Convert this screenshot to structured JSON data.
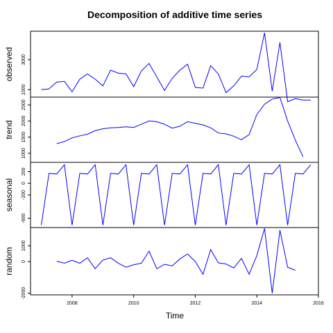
{
  "chart_data": {
    "type": "line",
    "title": "Decomposition of additive time series",
    "xlabel": "Time",
    "xlim": [
      2006.65,
      2016.0
    ],
    "x_ticks": [
      2008,
      2010,
      2012,
      2014,
      2016
    ],
    "x_tick_labels": [
      "2008",
      "2010",
      "2012",
      "2014",
      "2016"
    ],
    "x": [
      2007.0,
      2007.25,
      2007.5,
      2007.75,
      2008.0,
      2008.25,
      2008.5,
      2008.75,
      2009.0,
      2009.25,
      2009.5,
      2009.75,
      2010.0,
      2010.25,
      2010.5,
      2010.75,
      2011.0,
      2011.25,
      2011.5,
      2011.75,
      2012.0,
      2012.25,
      2012.5,
      2012.75,
      2013.0,
      2013.25,
      2013.5,
      2013.75,
      2014.0,
      2014.25,
      2014.5,
      2014.75,
      2015.0,
      2015.25,
      2015.5,
      2015.75
    ],
    "series": [
      {
        "name": "observed",
        "ylim": [
          500,
          4900
        ],
        "y_ticks": [
          1000,
          3000
        ],
        "y_tick_labels": [
          "1000",
          "3000"
        ],
        "values": [
          1000,
          1050,
          1500,
          1550,
          850,
          1700,
          2050,
          1700,
          1250,
          2300,
          2100,
          2050,
          1200,
          2250,
          2750,
          1850,
          950,
          1750,
          2300,
          2700,
          1150,
          1100,
          2600,
          2050,
          800,
          1250,
          1900,
          1850,
          2350,
          4800,
          900,
          4150,
          200,
          400,
          300,
          300
        ]
      },
      {
        "name": "trend",
        "ylim": [
          720,
          2740
        ],
        "y_ticks": [
          1000,
          1500,
          2000,
          2500
        ],
        "y_tick_labels": [
          "1000",
          "1500",
          "2000",
          "2500"
        ],
        "values": [
          null,
          null,
          1300,
          1360,
          1480,
          1540,
          1590,
          1700,
          1760,
          1790,
          1800,
          1820,
          1800,
          1900,
          2000,
          1980,
          1900,
          1780,
          1840,
          1980,
          1930,
          1880,
          1790,
          1630,
          1600,
          1530,
          1420,
          1580,
          2200,
          2520,
          2680,
          2730,
          2000,
          1410,
          890,
          null
        ]
      },
      {
        "name": "seasonal",
        "ylim": [
          -760,
          360
        ],
        "y_ticks": [
          -600,
          -200,
          0,
          200
        ],
        "y_tick_labels": [
          "-600",
          "-200",
          "0",
          "200"
        ],
        "values": [
          -720,
          170,
          160,
          320,
          -720,
          170,
          160,
          320,
          -720,
          170,
          160,
          320,
          -720,
          170,
          160,
          320,
          -720,
          170,
          160,
          320,
          -720,
          170,
          160,
          320,
          -720,
          170,
          160,
          320,
          -720,
          170,
          160,
          320,
          -720,
          170,
          160,
          320
        ]
      },
      {
        "name": "random",
        "ylim": [
          -2100,
          2150
        ],
        "y_ticks": [
          -2000,
          0,
          1000
        ],
        "y_tick_labels": [
          "-2000",
          "0",
          "1000"
        ],
        "values": [
          null,
          null,
          20,
          -100,
          80,
          -100,
          240,
          -450,
          100,
          240,
          -100,
          -350,
          -200,
          -100,
          660,
          -450,
          -170,
          -270,
          170,
          480,
          0,
          -800,
          760,
          -80,
          -150,
          -400,
          200,
          -800,
          380,
          2100,
          -2000,
          1990,
          -350,
          -550,
          null,
          null
        ]
      }
    ],
    "grid": false,
    "legend": "none"
  },
  "colors": {
    "line": "#0000ff",
    "axis": "#000000",
    "background": "#ffffff"
  }
}
